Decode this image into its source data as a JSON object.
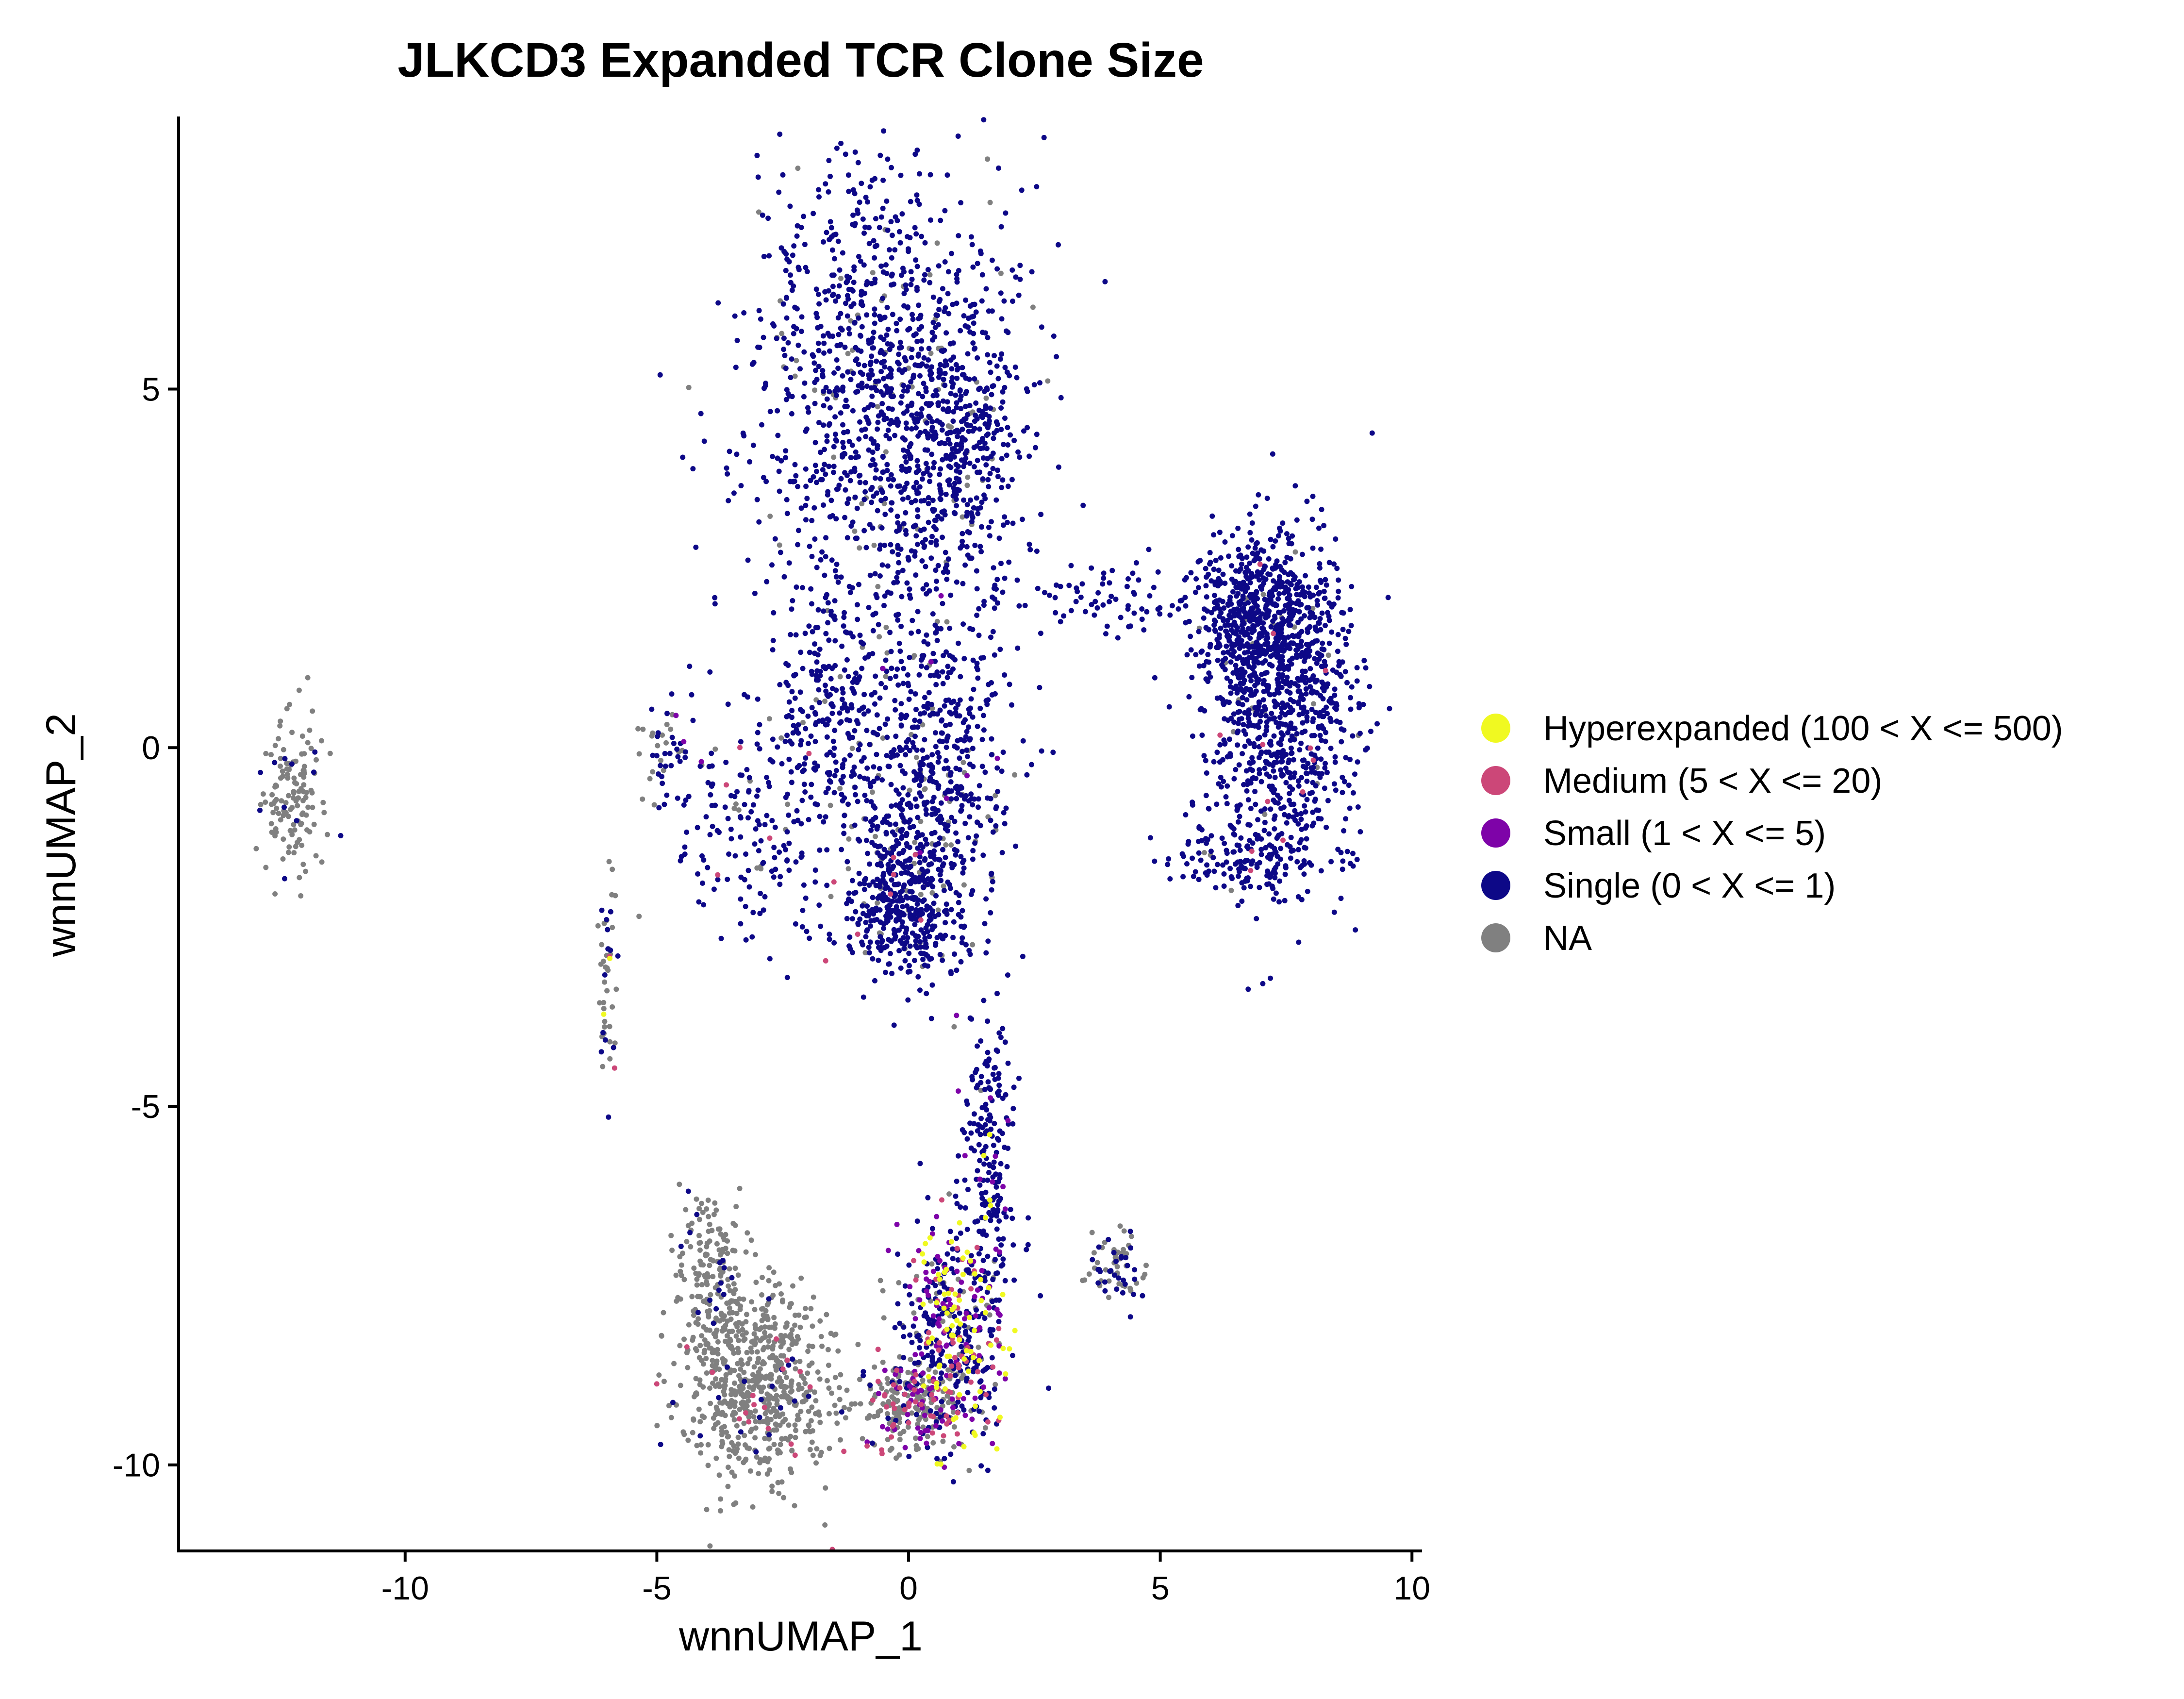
{
  "chart_data": {
    "type": "scatter",
    "title": "JLKCD3 Expanded TCR Clone Size",
    "xlabel": "wnnUMAP_1",
    "ylabel": "wnnUMAP_2",
    "xlim": [
      -14.5,
      10.2
    ],
    "ylim": [
      -11.2,
      8.8
    ],
    "xticks": [
      -10,
      -5,
      0,
      5,
      10
    ],
    "yticks": [
      -10,
      -5,
      0,
      5
    ],
    "grid": false,
    "legend_position": "right",
    "colors": {
      "hyperexpanded": "#F0F921",
      "medium": "#CC4778",
      "small": "#7E03A8",
      "single": "#0D0887",
      "na": "#808080"
    },
    "legend": [
      {
        "key": "hyperexpanded",
        "label": "Hyperexpanded (100 < X <= 500)",
        "color": "#F0F921"
      },
      {
        "key": "medium",
        "label": "Medium (5 < X <= 20)",
        "color": "#CC4778"
      },
      {
        "key": "small",
        "label": "Small (1 < X <= 5)",
        "color": "#7E03A8"
      },
      {
        "key": "single",
        "label": "Single (0 < X <= 1)",
        "color": "#0D0887"
      },
      {
        "key": "na",
        "label": "NA",
        "color": "#808080"
      }
    ],
    "clusters": [
      {
        "name": "top-large",
        "cx": -0.5,
        "cy": 4.9,
        "sx": 1.35,
        "sy": 1.7,
        "n": 1100,
        "mix": {
          "single": 0.92,
          "na": 0.08
        }
      },
      {
        "name": "top-right-lobe",
        "cx": 0.9,
        "cy": 4.2,
        "sx": 0.7,
        "sy": 0.9,
        "n": 300,
        "mix": {
          "single": 0.95,
          "na": 0.05
        }
      },
      {
        "name": "right-crescent",
        "cx": 7.4,
        "cy": 0.6,
        "sx": 0.75,
        "sy": 1.2,
        "n": 900,
        "mix": {
          "single": 0.97,
          "na": 0.02,
          "medium": 0.01
        }
      },
      {
        "name": "right-upper",
        "cx": 6.9,
        "cy": 1.8,
        "sx": 0.6,
        "sy": 0.5,
        "n": 450,
        "mix": {
          "single": 0.97,
          "na": 0.03
        }
      },
      {
        "name": "right-bottom-arm",
        "cx": 6.8,
        "cy": -1.6,
        "sx": 0.8,
        "sy": 0.25,
        "n": 120,
        "mix": {
          "single": 0.96,
          "medium": 0.02,
          "na": 0.02
        }
      },
      {
        "name": "right-arm-bridge",
        "cx": 4.2,
        "cy": 2.1,
        "sx": 1.0,
        "sy": 0.25,
        "n": 80,
        "mix": {
          "single": 1.0
        }
      },
      {
        "name": "middle-column",
        "cx": 0.4,
        "cy": -0.2,
        "sx": 0.8,
        "sy": 1.3,
        "n": 650,
        "mix": {
          "single": 0.9,
          "na": 0.09,
          "small": 0.01
        }
      },
      {
        "name": "middle-lower",
        "cx": -0.2,
        "cy": -2.2,
        "sx": 0.55,
        "sy": 0.55,
        "n": 380,
        "mix": {
          "single": 0.9,
          "na": 0.08,
          "medium": 0.02
        }
      },
      {
        "name": "middle-left-arm",
        "cx": -1.6,
        "cy": 0.5,
        "sx": 0.45,
        "sy": 0.9,
        "n": 180,
        "mix": {
          "single": 0.97,
          "na": 0.03
        }
      },
      {
        "name": "left-sparse",
        "cx": -3.0,
        "cy": -1.0,
        "sx": 0.9,
        "sy": 1.0,
        "n": 200,
        "mix": {
          "single": 0.9,
          "na": 0.07,
          "medium": 0.03
        }
      },
      {
        "name": "far-left-na",
        "cx": -12.3,
        "cy": -0.6,
        "sx": 0.35,
        "sy": 0.55,
        "n": 140,
        "mix": {
          "na": 0.95,
          "single": 0.05
        }
      },
      {
        "name": "small-left",
        "cx": -4.8,
        "cy": -0.1,
        "sx": 0.3,
        "sy": 0.35,
        "n": 45,
        "mix": {
          "na": 0.55,
          "single": 0.3,
          "small": 0.1,
          "hyperexpanded": 0.05
        }
      },
      {
        "name": "thin-vertical",
        "cx": -6.0,
        "cy": -3.2,
        "sx": 0.1,
        "sy": 0.9,
        "n": 50,
        "mix": {
          "na": 0.6,
          "single": 0.3,
          "hyperexpanded": 0.05,
          "medium": 0.05
        }
      },
      {
        "name": "bottom-na-arc",
        "cx": -3.0,
        "cy": -8.9,
        "sx": 0.75,
        "sy": 0.7,
        "n": 650,
        "mix": {
          "na": 0.93,
          "single": 0.04,
          "medium": 0.03
        }
      },
      {
        "name": "bottom-na-upper",
        "cx": -3.9,
        "cy": -7.3,
        "sx": 0.35,
        "sy": 0.55,
        "n": 170,
        "mix": {
          "na": 0.92,
          "single": 0.08
        }
      },
      {
        "name": "bottom-mixed",
        "cx": 0.9,
        "cy": -8.2,
        "sx": 0.55,
        "sy": 0.8,
        "n": 520,
        "mix": {
          "single": 0.42,
          "small": 0.18,
          "hyperexpanded": 0.15,
          "medium": 0.1,
          "na": 0.15
        }
      },
      {
        "name": "bottom-na-mid",
        "cx": 0.0,
        "cy": -9.2,
        "sx": 0.5,
        "sy": 0.3,
        "n": 220,
        "mix": {
          "na": 0.7,
          "medium": 0.15,
          "small": 0.1,
          "single": 0.05
        }
      },
      {
        "name": "stem",
        "cx": 1.6,
        "cy": -5.6,
        "sx": 0.25,
        "sy": 1.0,
        "n": 200,
        "mix": {
          "single": 0.92,
          "small": 0.04,
          "hyperexpanded": 0.02,
          "na": 0.02
        }
      },
      {
        "name": "right-small-cluster",
        "cx": 4.1,
        "cy": -7.3,
        "sx": 0.3,
        "sy": 0.25,
        "n": 70,
        "mix": {
          "na": 0.55,
          "single": 0.45
        }
      }
    ]
  }
}
